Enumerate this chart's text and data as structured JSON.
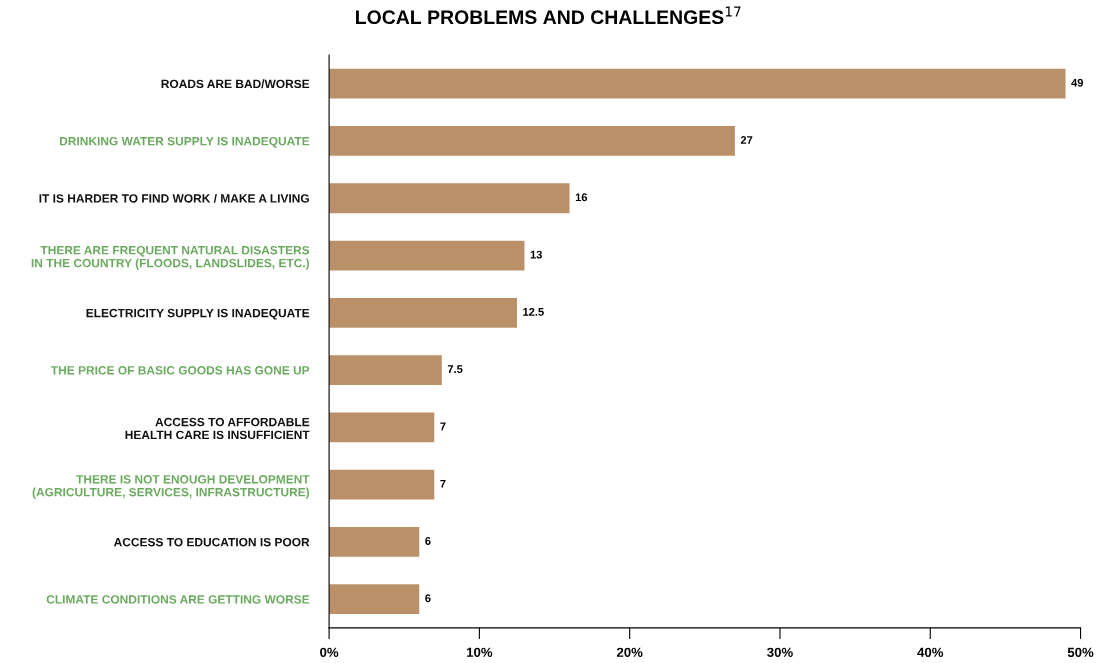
{
  "chart_data": {
    "type": "bar",
    "orientation": "horizontal",
    "title": "LOCAL PROBLEMS AND CHALLENGES$^{17}$",
    "categories": [
      "ROADS ARE BAD/WORSE",
      "DRINKING WATER SUPPLY IS INADEQUATE",
      "IT IS HARDER TO FIND WORK / MAKE A LIVING",
      "THERE ARE FREQUENT NATURAL DISASTERS\nIN THE COUNTRY (FLOODS, LANDSLIDES, ETC.)",
      "ELECTRICITY SUPPLY IS INADEQUATE",
      "THE PRICE OF BASIC GOODS HAS GONE UP",
      "ACCESS TO AFFORDABLE\nHEALTH CARE IS INSUFFICIENT",
      "THERE IS NOT ENOUGH DEVELOPMENT\n(AGRICULTURE, SERVICES, INFRASTRUCTURE)",
      "ACCESS TO EDUCATION IS POOR",
      "CLIMATE CONDITIONS ARE GETTING WORSE"
    ],
    "values": [
      49,
      27,
      16,
      13,
      12.5,
      7.5,
      7,
      7,
      6,
      6
    ],
    "color": "#b99068",
    "xlim": [
      0,
      50
    ],
    "xticks": [
      {
        "value": 0,
        "label": "0%"
      },
      {
        "value": 10,
        "label": "10%"
      },
      {
        "value": 20,
        "label": "20%"
      },
      {
        "value": 30,
        "label": "30%"
      },
      {
        "value": 40,
        "label": "40%"
      },
      {
        "value": 50,
        "label": "50%"
      }
    ],
    "data_labels": true,
    "grid": false,
    "legend": false
  }
}
